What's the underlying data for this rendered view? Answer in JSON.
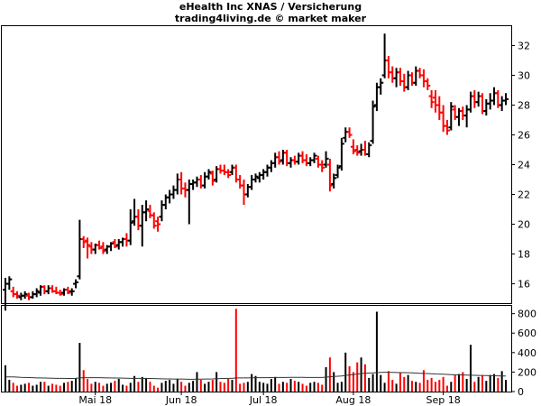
{
  "chart_data": {
    "type": "bar",
    "style": "ohlc-with-volume",
    "title": "eHealth Inc XNAS / Versicherung",
    "subtitle": "trading4living.de © market maker",
    "grid": false,
    "colors": {
      "up": "#000000",
      "down": "#ff0000",
      "average_line": "#333333"
    },
    "price_axis": {
      "ylim": [
        14.7,
        33.3
      ],
      "ticks": [
        16,
        18,
        20,
        22,
        24,
        26,
        28,
        30,
        32
      ],
      "position": "right"
    },
    "volume_axis": {
      "ylim": [
        0,
        880
      ],
      "ticks": [
        0,
        200,
        400,
        600,
        800
      ],
      "position": "right"
    },
    "x_labels": [
      {
        "label": "Mai 18",
        "day": 23
      },
      {
        "label": "Jun 18",
        "day": 45
      },
      {
        "label": "Jul 18",
        "day": 66
      },
      {
        "label": "Aug 18",
        "day": 89
      },
      {
        "label": "Sep 18",
        "day": 112
      }
    ],
    "series": [
      {
        "name": "price",
        "unit": "USD",
        "fields": [
          "day",
          "open",
          "high",
          "low",
          "close"
        ],
        "values": [
          [
            0,
            15.6,
            16.4,
            14.2,
            16.0
          ],
          [
            1,
            16.0,
            16.5,
            15.6,
            16.3
          ],
          [
            2,
            15.5,
            15.8,
            15.1,
            15.3
          ],
          [
            3,
            15.3,
            15.5,
            15.0,
            15.2
          ],
          [
            4,
            15.1,
            15.4,
            14.9,
            15.2
          ],
          [
            5,
            15.2,
            15.5,
            15.0,
            15.3
          ],
          [
            6,
            15.2,
            15.4,
            14.9,
            15.1
          ],
          [
            7,
            15.1,
            15.5,
            15.0,
            15.3
          ],
          [
            8,
            15.3,
            15.7,
            15.1,
            15.5
          ],
          [
            9,
            15.4,
            15.9,
            15.2,
            15.8
          ],
          [
            10,
            15.8,
            15.9,
            15.3,
            15.5
          ],
          [
            11,
            15.5,
            15.9,
            15.3,
            15.7
          ],
          [
            12,
            15.7,
            15.9,
            15.4,
            15.5
          ],
          [
            13,
            15.5,
            15.8,
            15.3,
            15.4
          ],
          [
            14,
            15.4,
            15.6,
            15.2,
            15.3
          ],
          [
            15,
            15.4,
            15.7,
            15.2,
            15.6
          ],
          [
            16,
            15.6,
            15.8,
            15.3,
            15.4
          ],
          [
            17,
            15.5,
            15.7,
            15.2,
            15.5
          ],
          [
            18,
            16.0,
            16.3,
            15.7,
            16.1
          ],
          [
            19,
            16.5,
            20.3,
            16.3,
            19.0
          ],
          [
            20,
            19.0,
            19.2,
            18.4,
            18.8
          ],
          [
            21,
            18.9,
            19.1,
            17.7,
            18.6
          ],
          [
            22,
            18.5,
            18.8,
            18.0,
            18.3
          ],
          [
            23,
            18.3,
            18.7,
            18.0,
            18.6
          ],
          [
            24,
            18.6,
            18.9,
            18.3,
            18.4
          ],
          [
            25,
            18.5,
            18.8,
            18.0,
            18.2
          ],
          [
            26,
            18.3,
            18.6,
            18.0,
            18.5
          ],
          [
            27,
            18.5,
            18.8,
            18.2,
            18.7
          ],
          [
            28,
            18.8,
            19.0,
            18.4,
            18.5
          ],
          [
            29,
            18.6,
            19.0,
            18.3,
            18.8
          ],
          [
            30,
            18.8,
            19.1,
            18.5,
            19.0
          ],
          [
            31,
            19.0,
            19.4,
            18.5,
            18.9
          ],
          [
            32,
            18.9,
            21.0,
            18.6,
            20.1
          ],
          [
            33,
            20.2,
            21.7,
            19.9,
            20.5
          ],
          [
            34,
            20.5,
            21.0,
            19.6,
            19.9
          ],
          [
            35,
            19.9,
            21.3,
            18.5,
            20.8
          ],
          [
            36,
            20.8,
            21.6,
            20.2,
            21.0
          ],
          [
            37,
            20.9,
            21.3,
            20.4,
            20.6
          ],
          [
            38,
            20.6,
            20.8,
            19.7,
            19.9
          ],
          [
            39,
            20.2,
            20.5,
            19.5,
            20.0
          ],
          [
            40,
            20.5,
            21.6,
            20.2,
            21.3
          ],
          [
            41,
            21.3,
            22.0,
            21.0,
            21.8
          ],
          [
            42,
            21.8,
            22.3,
            21.4,
            22.0
          ],
          [
            43,
            22.0,
            22.6,
            21.7,
            22.3
          ],
          [
            44,
            22.3,
            23.4,
            22.0,
            23.0
          ],
          [
            45,
            23.0,
            23.5,
            22.0,
            22.4
          ],
          [
            46,
            22.4,
            22.8,
            21.8,
            22.3
          ],
          [
            47,
            22.3,
            23.0,
            20.0,
            22.7
          ],
          [
            48,
            22.7,
            23.0,
            22.3,
            22.8
          ],
          [
            49,
            22.8,
            23.2,
            22.5,
            23.0
          ],
          [
            50,
            23.0,
            23.3,
            22.4,
            22.6
          ],
          [
            51,
            22.6,
            23.5,
            22.4,
            23.2
          ],
          [
            52,
            23.2,
            23.7,
            23.0,
            23.5
          ],
          [
            53,
            23.4,
            23.6,
            22.6,
            22.9
          ],
          [
            54,
            23.0,
            23.9,
            22.8,
            23.7
          ],
          [
            55,
            23.7,
            24.0,
            23.4,
            23.6
          ],
          [
            56,
            23.6,
            24.0,
            23.3,
            23.5
          ],
          [
            57,
            23.5,
            23.7,
            23.1,
            23.3
          ],
          [
            58,
            23.5,
            24.0,
            23.3,
            23.8
          ],
          [
            59,
            23.8,
            24.0,
            22.8,
            23.0
          ],
          [
            60,
            23.0,
            23.3,
            22.4,
            22.6
          ],
          [
            61,
            22.6,
            23.0,
            21.3,
            22.0
          ],
          [
            62,
            22.0,
            22.7,
            21.8,
            22.5
          ],
          [
            63,
            22.5,
            23.3,
            22.3,
            23.0
          ],
          [
            64,
            23.0,
            23.4,
            22.8,
            23.2
          ],
          [
            65,
            23.1,
            23.5,
            22.8,
            23.3
          ],
          [
            66,
            23.3,
            23.7,
            23.0,
            23.5
          ],
          [
            67,
            23.5,
            24.0,
            23.2,
            23.8
          ],
          [
            68,
            23.8,
            24.3,
            23.5,
            24.1
          ],
          [
            69,
            24.1,
            24.8,
            23.8,
            24.5
          ],
          [
            70,
            24.5,
            24.9,
            24.0,
            24.2
          ],
          [
            71,
            24.3,
            25.0,
            24.0,
            24.8
          ],
          [
            72,
            24.8,
            25.0,
            23.9,
            24.1
          ],
          [
            73,
            24.1,
            24.5,
            23.8,
            24.3
          ],
          [
            74,
            24.3,
            24.6,
            24.0,
            24.2
          ],
          [
            75,
            24.2,
            24.8,
            24.0,
            24.6
          ],
          [
            76,
            24.6,
            24.9,
            24.1,
            24.3
          ],
          [
            77,
            24.3,
            24.7,
            23.9,
            24.1
          ],
          [
            78,
            24.1,
            24.5,
            23.9,
            24.3
          ],
          [
            79,
            24.3,
            24.8,
            24.1,
            24.6
          ],
          [
            80,
            24.4,
            24.6,
            23.8,
            24.0
          ],
          [
            81,
            24.0,
            24.3,
            23.5,
            23.8
          ],
          [
            82,
            24.0,
            24.9,
            23.8,
            24.4
          ],
          [
            83,
            24.0,
            24.4,
            22.2,
            22.6
          ],
          [
            84,
            22.7,
            23.4,
            22.4,
            23.1
          ],
          [
            85,
            23.3,
            24.0,
            23.1,
            23.8
          ],
          [
            86,
            23.9,
            25.8,
            23.6,
            25.4
          ],
          [
            87,
            25.8,
            26.5,
            25.5,
            26.2
          ],
          [
            88,
            26.2,
            26.5,
            25.8,
            26.0
          ],
          [
            89,
            25.2,
            25.7,
            24.7,
            24.9
          ],
          [
            90,
            25.0,
            25.3,
            24.6,
            24.8
          ],
          [
            91,
            24.9,
            25.4,
            24.6,
            25.0
          ],
          [
            92,
            25.0,
            25.6,
            24.6,
            24.7
          ],
          [
            93,
            24.7,
            25.5,
            24.5,
            25.3
          ],
          [
            94,
            25.6,
            28.3,
            25.4,
            27.9
          ],
          [
            95,
            28.0,
            29.5,
            27.6,
            29.2
          ],
          [
            96,
            29.2,
            29.8,
            28.7,
            29.5
          ],
          [
            97,
            30.0,
            32.8,
            29.8,
            31.0
          ],
          [
            98,
            31.0,
            31.3,
            29.8,
            30.2
          ],
          [
            99,
            30.2,
            30.6,
            29.5,
            29.8
          ],
          [
            100,
            29.8,
            30.5,
            29.2,
            30.2
          ],
          [
            101,
            30.2,
            30.5,
            29.3,
            29.6
          ],
          [
            102,
            29.6,
            30.1,
            28.9,
            29.2
          ],
          [
            103,
            29.2,
            30.3,
            29.0,
            30.0
          ],
          [
            104,
            30.0,
            30.2,
            29.3,
            29.5
          ],
          [
            105,
            29.5,
            30.6,
            29.3,
            30.3
          ],
          [
            106,
            30.3,
            30.5,
            29.8,
            30.0
          ],
          [
            107,
            30.0,
            30.4,
            29.2,
            29.6
          ],
          [
            108,
            29.6,
            29.8,
            29.0,
            29.3
          ],
          [
            109,
            28.6,
            29.0,
            27.8,
            28.2
          ],
          [
            110,
            28.5,
            29.0,
            27.5,
            28.0
          ],
          [
            111,
            28.0,
            28.6,
            27.0,
            27.5
          ],
          [
            112,
            27.5,
            28.0,
            26.2,
            26.6
          ],
          [
            113,
            26.6,
            27.0,
            26.0,
            26.3
          ],
          [
            114,
            26.5,
            28.2,
            26.3,
            27.9
          ],
          [
            115,
            27.7,
            28.0,
            27.0,
            27.2
          ],
          [
            116,
            27.2,
            27.8,
            26.6,
            27.6
          ],
          [
            117,
            27.6,
            27.9,
            27.0,
            27.3
          ],
          [
            118,
            27.3,
            28.0,
            26.5,
            27.7
          ],
          [
            119,
            27.7,
            28.9,
            27.5,
            28.6
          ],
          [
            120,
            28.6,
            29.0,
            27.8,
            28.2
          ],
          [
            121,
            28.2,
            28.9,
            27.9,
            28.6
          ],
          [
            122,
            28.6,
            28.8,
            27.4,
            27.6
          ],
          [
            123,
            27.6,
            28.4,
            27.3,
            28.1
          ],
          [
            124,
            28.1,
            28.8,
            27.7,
            28.3
          ],
          [
            125,
            28.3,
            29.2,
            28.0,
            28.8
          ],
          [
            126,
            28.8,
            29.0,
            27.8,
            28.0
          ],
          [
            127,
            28.0,
            28.6,
            27.6,
            28.3
          ],
          [
            128,
            28.3,
            28.8,
            28.0,
            28.4
          ]
        ]
      },
      {
        "name": "volume",
        "unit": "k",
        "values": [
          270,
          120,
          90,
          60,
          70,
          80,
          90,
          60,
          70,
          100,
          100,
          60,
          80,
          70,
          60,
          90,
          100,
          110,
          140,
          500,
          220,
          130,
          80,
          100,
          90,
          60,
          80,
          90,
          110,
          130,
          70,
          60,
          90,
          160,
          100,
          150,
          140,
          100,
          60,
          40,
          90,
          110,
          120,
          80,
          130,
          100,
          60,
          90,
          110,
          200,
          120,
          80,
          100,
          120,
          200,
          100,
          90,
          130,
          120,
          850,
          80,
          90,
          100,
          180,
          160,
          100,
          90,
          80,
          130,
          150,
          80,
          100,
          90,
          130,
          110,
          100,
          80,
          60,
          90,
          100,
          90,
          70,
          250,
          350,
          200,
          90,
          100,
          400,
          260,
          200,
          300,
          350,
          280,
          140,
          180,
          820,
          170,
          90,
          210,
          120,
          80,
          190,
          150,
          170,
          110,
          100,
          90,
          220,
          120,
          140,
          100,
          120,
          150,
          60,
          100,
          170,
          180,
          200,
          130,
          480,
          100,
          150,
          170,
          110,
          170,
          180,
          140,
          210,
          120
        ]
      },
      {
        "name": "volume average",
        "values": [
          150,
          150,
          150,
          148,
          146,
          145,
          144,
          142,
          140,
          140,
          139,
          138,
          137,
          136,
          135,
          135,
          134,
          134,
          136,
          140,
          142,
          143,
          143,
          143,
          142,
          141,
          140,
          140,
          139,
          139,
          138,
          137,
          136,
          135,
          135,
          135,
          134,
          134,
          133,
          132,
          131,
          130,
          130,
          129,
          129,
          128,
          127,
          126,
          126,
          127,
          127,
          128,
          129,
          130,
          132,
          133,
          134,
          135,
          136,
          140,
          140,
          140,
          140,
          141,
          142,
          143,
          143,
          143,
          144,
          145,
          145,
          145,
          145,
          146,
          146,
          146,
          146,
          145,
          145,
          145,
          145,
          145,
          148,
          152,
          155,
          157,
          160,
          165,
          170,
          175,
          180,
          185,
          188,
          190,
          192,
          195,
          197,
          198,
          198,
          197,
          196,
          195,
          194,
          193,
          192,
          190,
          188,
          186,
          185,
          183,
          181,
          180,
          178,
          176,
          174,
          172,
          171,
          170,
          169,
          168,
          167,
          166,
          165,
          164,
          163,
          162,
          161,
          160,
          160
        ]
      }
    ]
  }
}
